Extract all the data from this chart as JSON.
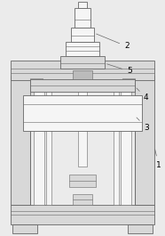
{
  "bg_color": "#ebebeb",
  "line_color": "#666666",
  "fill_light": "#d8d8d8",
  "fill_white": "#f5f5f5",
  "fill_mid": "#bbbbbb",
  "label_fontsize": 6.5
}
